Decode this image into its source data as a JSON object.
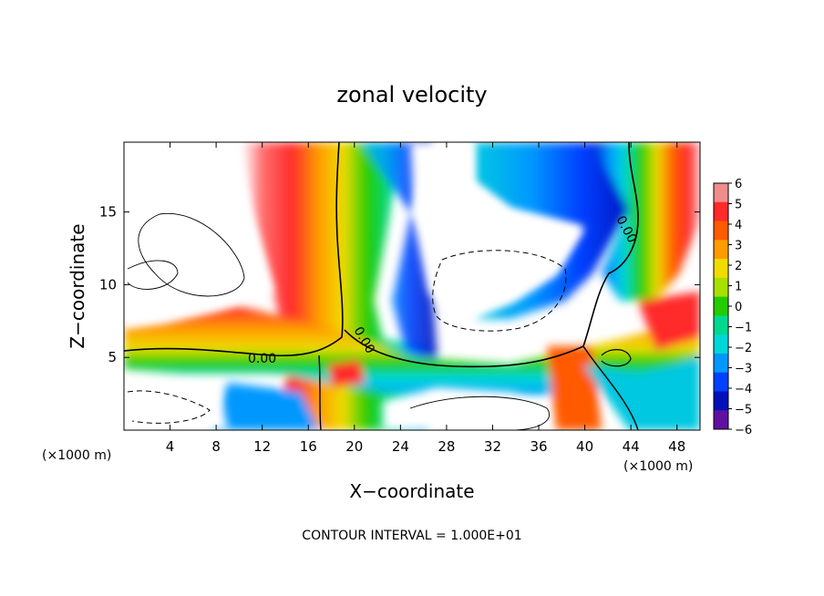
{
  "chart_data": {
    "type": "heatmap",
    "title": "zonal velocity",
    "xlabel": "X−coordinate",
    "ylabel": "Z−coordinate",
    "x_unit_left": "(×1000 m)",
    "x_unit_right": "(×1000 m)",
    "xlim": [
      0,
      50
    ],
    "ylim": [
      0,
      19.8
    ],
    "x_ticks": [
      4,
      8,
      12,
      16,
      20,
      24,
      28,
      32,
      36,
      40,
      44,
      48
    ],
    "y_ticks": [
      5,
      10,
      15
    ],
    "colorbar": {
      "range": [
        -6,
        6
      ],
      "ticks": [
        "6",
        "5",
        "4",
        "3",
        "2",
        "1",
        "0",
        "−1",
        "−2",
        "−3",
        "−4",
        "−5",
        "−6"
      ],
      "colors": [
        "#f08c8c",
        "#ff2a2a",
        "#ff5a00",
        "#ff9c00",
        "#f0dc00",
        "#a8e000",
        "#22cc00",
        "#00d890",
        "#00d8d8",
        "#0098ff",
        "#0040ff",
        "#0010b8",
        "#6010a0"
      ]
    },
    "contour_labels": [
      "0.00",
      "0.00",
      "0.00"
    ],
    "caption": "CONTOUR INTERVAL = 1.000E+01"
  }
}
